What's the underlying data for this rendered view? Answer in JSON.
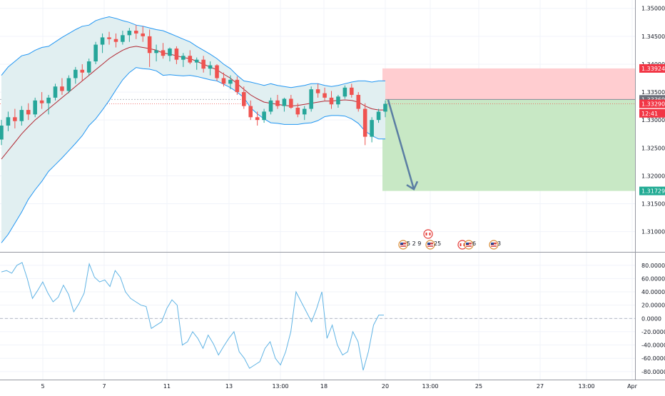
{
  "chart_data": [
    {
      "type": "candlestick",
      "instrument_hint": "price panel with Bollinger Bands and a short-position tool",
      "y_ticks": [
        "1.35000",
        "1.34500",
        "1.34000",
        "1.33500",
        "1.33000",
        "1.32500",
        "1.32000",
        "1.31500",
        "1.31000"
      ],
      "ylim": [
        1.3065,
        1.3515
      ],
      "x_ticks": [
        "5",
        "7",
        "11",
        "13",
        "13:00",
        "18",
        "20",
        "13:00",
        "25",
        "27",
        "13:00",
        "Apr"
      ],
      "price_tags": [
        {
          "value": "1.33924",
          "price": 1.33924,
          "color": "#f23645"
        },
        {
          "value": "1.33369",
          "price": 1.33369,
          "color": "#6a6d78"
        },
        {
          "value": "1.33290",
          "price": 1.3329,
          "color": "#f23645"
        },
        {
          "value": "12:41",
          "price": 1.3312,
          "color": "#f23645"
        },
        {
          "value": "1.31729",
          "price": 1.31729,
          "color": "#22ab94"
        }
      ],
      "position_tool": {
        "entry": 1.33369,
        "stop": 1.33924,
        "target": 1.31729
      },
      "current_price": 1.3329,
      "candles_ohlc": [
        [
          1.3265,
          1.33,
          1.3255,
          1.329
        ],
        [
          1.329,
          1.3315,
          1.328,
          1.3305
        ],
        [
          1.3305,
          1.332,
          1.3285,
          1.3298
        ],
        [
          1.3298,
          1.3325,
          1.329,
          1.3318
        ],
        [
          1.3318,
          1.333,
          1.33,
          1.331
        ],
        [
          1.331,
          1.334,
          1.3305,
          1.3335
        ],
        [
          1.3335,
          1.335,
          1.332,
          1.333
        ],
        [
          1.333,
          1.3345,
          1.331,
          1.334
        ],
        [
          1.334,
          1.3365,
          1.3335,
          1.336
        ],
        [
          1.336,
          1.3375,
          1.3345,
          1.3352
        ],
        [
          1.3352,
          1.338,
          1.3348,
          1.3375
        ],
        [
          1.3375,
          1.3395,
          1.3365,
          1.339
        ],
        [
          1.339,
          1.34,
          1.337,
          1.3385
        ],
        [
          1.3385,
          1.341,
          1.338,
          1.3405
        ],
        [
          1.3405,
          1.344,
          1.34,
          1.3435
        ],
        [
          1.3435,
          1.3455,
          1.342,
          1.3448
        ],
        [
          1.3448,
          1.3458,
          1.3435,
          1.3445
        ],
        [
          1.3445,
          1.3455,
          1.343,
          1.344
        ],
        [
          1.344,
          1.346,
          1.3435,
          1.3452
        ],
        [
          1.3452,
          1.3465,
          1.344,
          1.346
        ],
        [
          1.346,
          1.347,
          1.3445,
          1.3455
        ],
        [
          1.3455,
          1.3468,
          1.344,
          1.345
        ],
        [
          1.345,
          1.3462,
          1.3395,
          1.342
        ],
        [
          1.342,
          1.3435,
          1.3405,
          1.3425
        ],
        [
          1.3425,
          1.3438,
          1.341,
          1.3415
        ],
        [
          1.3415,
          1.343,
          1.3405,
          1.3428
        ],
        [
          1.3428,
          1.3432,
          1.34,
          1.3408
        ],
        [
          1.3408,
          1.342,
          1.3395,
          1.3415
        ],
        [
          1.3415,
          1.3425,
          1.34,
          1.3403
        ],
        [
          1.3403,
          1.3412,
          1.339,
          1.3408
        ],
        [
          1.3408,
          1.3415,
          1.3385,
          1.3392
        ],
        [
          1.3392,
          1.3405,
          1.338,
          1.3398
        ],
        [
          1.3398,
          1.34,
          1.337,
          1.3375
        ],
        [
          1.3375,
          1.3385,
          1.336,
          1.3365
        ],
        [
          1.3365,
          1.338,
          1.3355,
          1.3372
        ],
        [
          1.3372,
          1.3378,
          1.3345,
          1.335
        ],
        [
          1.335,
          1.336,
          1.332,
          1.3325
        ],
        [
          1.3325,
          1.3335,
          1.33,
          1.3305
        ],
        [
          1.3305,
          1.3315,
          1.329,
          1.33
        ],
        [
          1.33,
          1.332,
          1.3295,
          1.3315
        ],
        [
          1.3315,
          1.334,
          1.331,
          1.3335
        ],
        [
          1.3335,
          1.3345,
          1.332,
          1.3325
        ],
        [
          1.3325,
          1.334,
          1.3315,
          1.3338
        ],
        [
          1.3338,
          1.3345,
          1.332,
          1.3322
        ],
        [
          1.3322,
          1.333,
          1.3305,
          1.331
        ],
        [
          1.331,
          1.3325,
          1.33,
          1.332
        ],
        [
          1.332,
          1.336,
          1.3315,
          1.3355
        ],
        [
          1.3355,
          1.3365,
          1.334,
          1.3348
        ],
        [
          1.3348,
          1.3358,
          1.3335,
          1.334
        ],
        [
          1.334,
          1.3352,
          1.332,
          1.3328
        ],
        [
          1.3328,
          1.3345,
          1.3322,
          1.3342
        ],
        [
          1.3342,
          1.3362,
          1.3338,
          1.3358
        ],
        [
          1.3358,
          1.3365,
          1.334,
          1.3345
        ],
        [
          1.3345,
          1.335,
          1.3315,
          1.332
        ],
        [
          1.332,
          1.333,
          1.3255,
          1.327
        ],
        [
          1.327,
          1.3305,
          1.326,
          1.33
        ],
        [
          1.33,
          1.332,
          1.3295,
          1.3315
        ],
        [
          1.3315,
          1.3335,
          1.3305,
          1.3329
        ]
      ],
      "bb_upper": [
        1.338,
        1.3395,
        1.3405,
        1.3415,
        1.3418,
        1.3425,
        1.343,
        1.3432,
        1.344,
        1.3448,
        1.3455,
        1.3462,
        1.3468,
        1.347,
        1.3478,
        1.3482,
        1.3485,
        1.3482,
        1.3478,
        1.3475,
        1.347,
        1.3468,
        1.3465,
        1.3462,
        1.346,
        1.3455,
        1.345,
        1.3445,
        1.344,
        1.3432,
        1.3425,
        1.3418,
        1.341,
        1.34,
        1.3392,
        1.338,
        1.337,
        1.3368,
        1.3365,
        1.3362,
        1.3365,
        1.3362,
        1.336,
        1.3358,
        1.336,
        1.3362,
        1.3365,
        1.3365,
        1.3362,
        1.336,
        1.3362,
        1.3365,
        1.3368,
        1.337,
        1.337,
        1.3368,
        1.337,
        1.337
      ],
      "bb_middle": [
        1.323,
        1.3245,
        1.326,
        1.3275,
        1.3288,
        1.33,
        1.331,
        1.332,
        1.333,
        1.334,
        1.335,
        1.336,
        1.337,
        1.338,
        1.339,
        1.34,
        1.341,
        1.3418,
        1.3425,
        1.343,
        1.3432,
        1.343,
        1.3428,
        1.3425,
        1.342,
        1.3418,
        1.3415,
        1.3412,
        1.341,
        1.3405,
        1.34,
        1.3395,
        1.339,
        1.3382,
        1.3375,
        1.3365,
        1.3355,
        1.3345,
        1.3338,
        1.3332,
        1.333,
        1.3328,
        1.3326,
        1.3325,
        1.3326,
        1.3328,
        1.333,
        1.3332,
        1.3334,
        1.3334,
        1.3335,
        1.3336,
        1.3335,
        1.3332,
        1.3325,
        1.332,
        1.3318,
        1.3318
      ],
      "bb_lower": [
        1.308,
        1.3095,
        1.3115,
        1.3135,
        1.3158,
        1.3175,
        1.319,
        1.3208,
        1.322,
        1.3232,
        1.3245,
        1.3258,
        1.3272,
        1.329,
        1.3302,
        1.3318,
        1.3335,
        1.3354,
        1.3372,
        1.3385,
        1.3394,
        1.3392,
        1.3391,
        1.3388,
        1.338,
        1.3381,
        1.338,
        1.3379,
        1.338,
        1.3378,
        1.3375,
        1.3372,
        1.337,
        1.3364,
        1.3358,
        1.335,
        1.334,
        1.3322,
        1.3311,
        1.3302,
        1.3295,
        1.3294,
        1.3292,
        1.3292,
        1.3292,
        1.3294,
        1.3295,
        1.3299,
        1.3306,
        1.3308,
        1.3308,
        1.3307,
        1.3302,
        1.3294,
        1.328,
        1.3272,
        1.3266,
        1.3266
      ]
    },
    {
      "type": "line",
      "y_ticks": [
        "80.0000",
        "60.0000",
        "40.0000",
        "20.0000",
        "0.0000",
        "-20.0000",
        "-40.0000",
        "-60.0000",
        "-80.0000"
      ],
      "ylim": [
        -92,
        98
      ],
      "values": [
        70,
        72,
        68,
        80,
        84,
        60,
        30,
        42,
        55,
        38,
        25,
        32,
        50,
        36,
        10,
        22,
        38,
        82,
        62,
        55,
        58,
        48,
        72,
        62,
        40,
        30,
        25,
        20,
        18,
        -15,
        -10,
        -5,
        15,
        28,
        20,
        -40,
        -35,
        -20,
        -30,
        -45,
        -25,
        -38,
        -55,
        -42,
        -30,
        -20,
        -50,
        -60,
        -75,
        -70,
        -65,
        -45,
        -35,
        -60,
        -70,
        -50,
        -20,
        40,
        25,
        10,
        -5,
        15,
        40,
        -30,
        -10,
        -40,
        -55,
        -50,
        -20,
        -35,
        -78,
        -50,
        -10,
        5,
        5
      ]
    }
  ],
  "events": [
    {
      "flag": "us-flag-icon",
      "label": "5 2 9"
    },
    {
      "flag": "ca-flag-icon",
      "label": ""
    },
    {
      "flag": "us-flag-icon",
      "label": "25"
    },
    {
      "flag": "ca-flag-icon",
      "label": "13"
    },
    {
      "flag": "us-flag-icon",
      "label": "6"
    },
    {
      "flag": "us-flag-icon",
      "label": "3"
    }
  ],
  "colors": {
    "up": "#26a69a",
    "down": "#ef5350",
    "bb_line": "#2196f3",
    "bb_fill": "#e1eff1",
    "basis": "#b22833",
    "stop_zone": "#ffcdd0",
    "target_zone": "#c8e8c5",
    "arrow": "#5b7ea3",
    "oscillator": "#5fb3e4",
    "grid": "#f0f3fa",
    "axis_text": "#131722"
  }
}
